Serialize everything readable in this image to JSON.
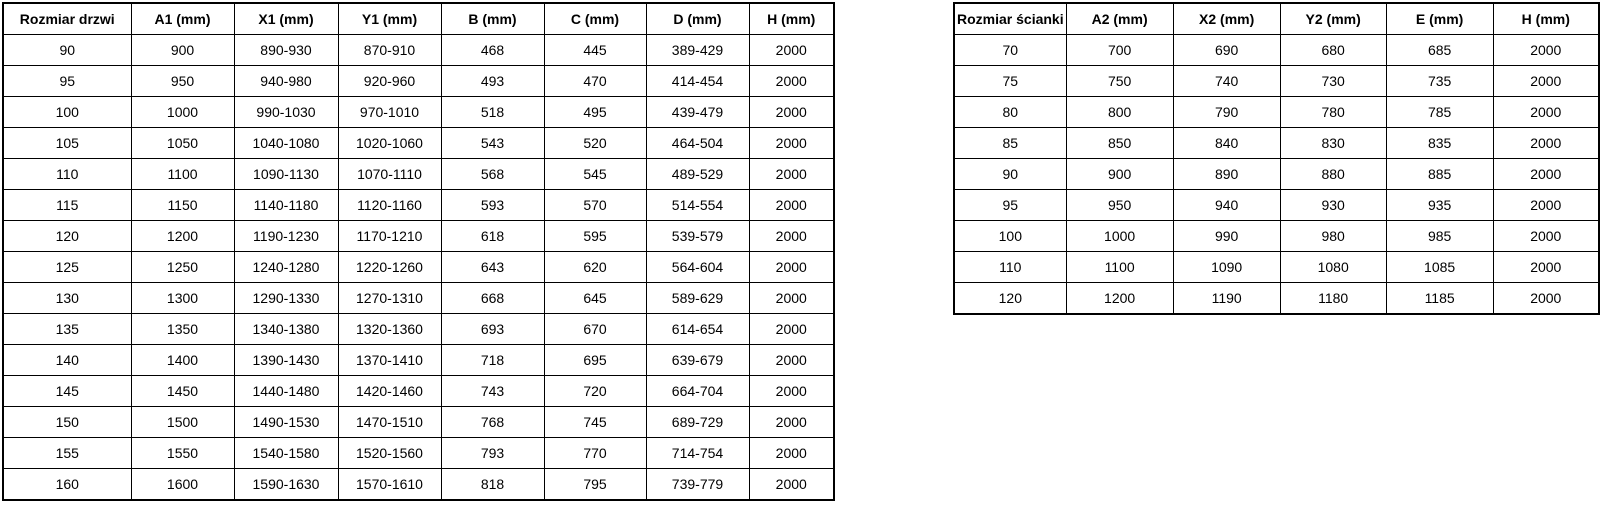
{
  "page": {
    "background_color": "#ffffff",
    "border_color": "#000000",
    "text_color": "#000000"
  },
  "tables": [
    {
      "name": "door-size-table",
      "headers": [
        "Rozmiar drzwi",
        "A1 (mm)",
        "X1 (mm)",
        "Y1 (mm)",
        "B (mm)",
        "C (mm)",
        "D (mm)",
        "H (mm)"
      ],
      "rows": [
        [
          "90",
          "900",
          "890-930",
          "870-910",
          "468",
          "445",
          "389-429",
          "2000"
        ],
        [
          "95",
          "950",
          "940-980",
          "920-960",
          "493",
          "470",
          "414-454",
          "2000"
        ],
        [
          "100",
          "1000",
          "990-1030",
          "970-1010",
          "518",
          "495",
          "439-479",
          "2000"
        ],
        [
          "105",
          "1050",
          "1040-1080",
          "1020-1060",
          "543",
          "520",
          "464-504",
          "2000"
        ],
        [
          "110",
          "1100",
          "1090-1130",
          "1070-1110",
          "568",
          "545",
          "489-529",
          "2000"
        ],
        [
          "115",
          "1150",
          "1140-1180",
          "1120-1160",
          "593",
          "570",
          "514-554",
          "2000"
        ],
        [
          "120",
          "1200",
          "1190-1230",
          "1170-1210",
          "618",
          "595",
          "539-579",
          "2000"
        ],
        [
          "125",
          "1250",
          "1240-1280",
          "1220-1260",
          "643",
          "620",
          "564-604",
          "2000"
        ],
        [
          "130",
          "1300",
          "1290-1330",
          "1270-1310",
          "668",
          "645",
          "589-629",
          "2000"
        ],
        [
          "135",
          "1350",
          "1340-1380",
          "1320-1360",
          "693",
          "670",
          "614-654",
          "2000"
        ],
        [
          "140",
          "1400",
          "1390-1430",
          "1370-1410",
          "718",
          "695",
          "639-679",
          "2000"
        ],
        [
          "145",
          "1450",
          "1440-1480",
          "1420-1460",
          "743",
          "720",
          "664-704",
          "2000"
        ],
        [
          "150",
          "1500",
          "1490-1530",
          "1470-1510",
          "768",
          "745",
          "689-729",
          "2000"
        ],
        [
          "155",
          "1550",
          "1540-1580",
          "1520-1560",
          "793",
          "770",
          "714-754",
          "2000"
        ],
        [
          "160",
          "1600",
          "1590-1630",
          "1570-1610",
          "818",
          "795",
          "739-779",
          "2000"
        ]
      ]
    },
    {
      "name": "wall-size-table",
      "headers": [
        "Rozmiar ścianki",
        "A2 (mm)",
        "X2 (mm)",
        "Y2 (mm)",
        "E (mm)",
        "H (mm)"
      ],
      "rows": [
        [
          "70",
          "700",
          "690",
          "680",
          "685",
          "2000"
        ],
        [
          "75",
          "750",
          "740",
          "730",
          "735",
          "2000"
        ],
        [
          "80",
          "800",
          "790",
          "780",
          "785",
          "2000"
        ],
        [
          "85",
          "850",
          "840",
          "830",
          "835",
          "2000"
        ],
        [
          "90",
          "900",
          "890",
          "880",
          "885",
          "2000"
        ],
        [
          "95",
          "950",
          "940",
          "930",
          "935",
          "2000"
        ],
        [
          "100",
          "1000",
          "990",
          "980",
          "985",
          "2000"
        ],
        [
          "110",
          "1100",
          "1090",
          "1080",
          "1085",
          "2000"
        ],
        [
          "120",
          "1200",
          "1190",
          "1180",
          "1185",
          "2000"
        ]
      ]
    }
  ]
}
